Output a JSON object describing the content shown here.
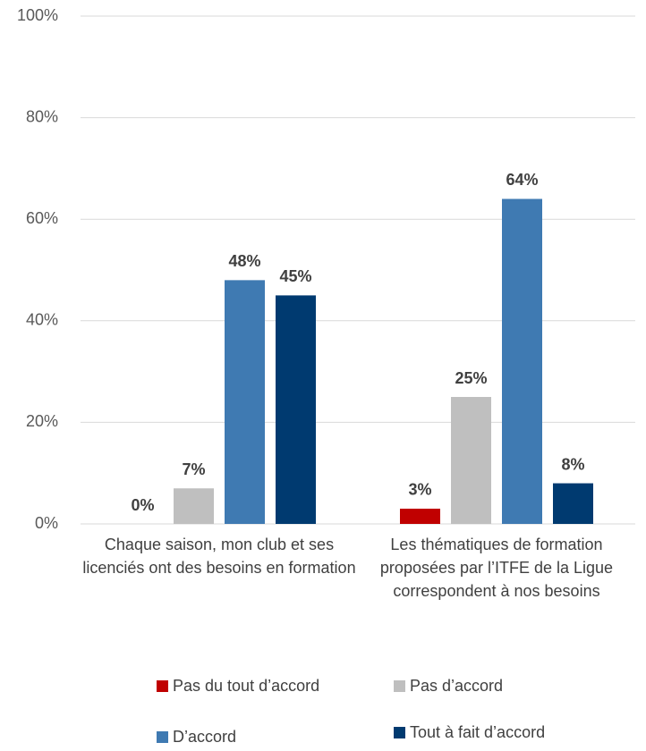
{
  "chart_data": {
    "type": "bar",
    "categories": [
      "Chaque saison, mon club et ses licenciés ont des besoins en formation",
      "Les thématiques de formation proposées par l’ITFE de la Ligue correspondent à nos besoins"
    ],
    "series": [
      {
        "name": "Pas du tout d’accord",
        "color": "#c00000",
        "values": [
          0,
          3
        ],
        "value_labels": [
          "0%",
          "3%"
        ]
      },
      {
        "name": "Pas d’accord",
        "color": "#bfbfbf",
        "values": [
          7,
          25
        ],
        "value_labels": [
          "7%",
          "25%"
        ]
      },
      {
        "name": "D’accord",
        "color": "#3f7ab2",
        "values": [
          48,
          64
        ],
        "value_labels": [
          "48%",
          "64%"
        ]
      },
      {
        "name": "Tout à fait d’accord",
        "color": "#003a70",
        "values": [
          45,
          8
        ],
        "value_labels": [
          "45%",
          "8%"
        ]
      }
    ],
    "ylim": [
      0,
      100
    ],
    "yticks": [
      {
        "value": 0,
        "label": "0%"
      },
      {
        "value": 20,
        "label": "20%"
      },
      {
        "value": 40,
        "label": "40%"
      },
      {
        "value": 60,
        "label": "60%"
      },
      {
        "value": 80,
        "label": "80%"
      },
      {
        "value": 100,
        "label": "100%"
      }
    ],
    "grid": true,
    "legend": "bottom"
  }
}
